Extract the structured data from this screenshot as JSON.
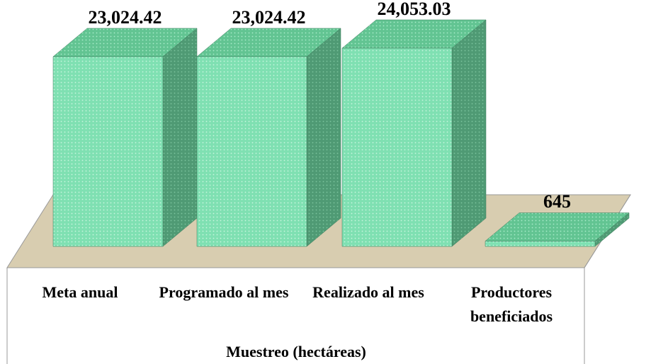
{
  "chart_data": {
    "type": "bar3d",
    "categories": [
      "Meta anual",
      "Programado al mes",
      "Realizado al mes",
      "Productores beneficiados"
    ],
    "values": [
      23024.42,
      23024.42,
      24053.03,
      645
    ],
    "value_labels": [
      "23,024.42",
      "23,024.42",
      "24,053.03",
      "645"
    ],
    "xlabel": "Muestreo (hectáreas)",
    "color": "#7fe0b2"
  }
}
